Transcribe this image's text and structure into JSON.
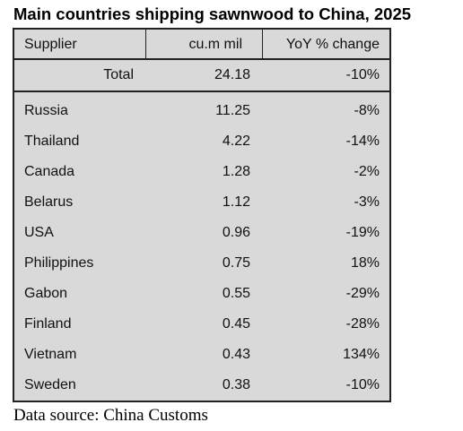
{
  "title": "Main countries shipping sawnwood to China, 2025",
  "table": {
    "headers": {
      "supplier": "Supplier",
      "volume": "cu.m mil",
      "yoy": "YoY % change"
    },
    "total": {
      "label": "Total",
      "volume": "24.18",
      "yoy": "-10%"
    },
    "rows": [
      {
        "supplier": "Russia",
        "volume": "11.25",
        "yoy": "-8%"
      },
      {
        "supplier": "Thailand",
        "volume": "4.22",
        "yoy": "-14%"
      },
      {
        "supplier": "Canada",
        "volume": "1.28",
        "yoy": "-2%"
      },
      {
        "supplier": "Belarus",
        "volume": "1.12",
        "yoy": "-3%"
      },
      {
        "supplier": "USA",
        "volume": "0.96",
        "yoy": "-19%"
      },
      {
        "supplier": "Philippines",
        "volume": "0.75",
        "yoy": "18%"
      },
      {
        "supplier": "Gabon",
        "volume": "0.55",
        "yoy": "-29%"
      },
      {
        "supplier": "Finland",
        "volume": "0.45",
        "yoy": "-28%"
      },
      {
        "supplier": "Vietnam",
        "volume": "0.43",
        "yoy": "134%"
      },
      {
        "supplier": "Sweden",
        "volume": "0.38",
        "yoy": "-10%"
      }
    ]
  },
  "source": "Data source: China Customs"
}
